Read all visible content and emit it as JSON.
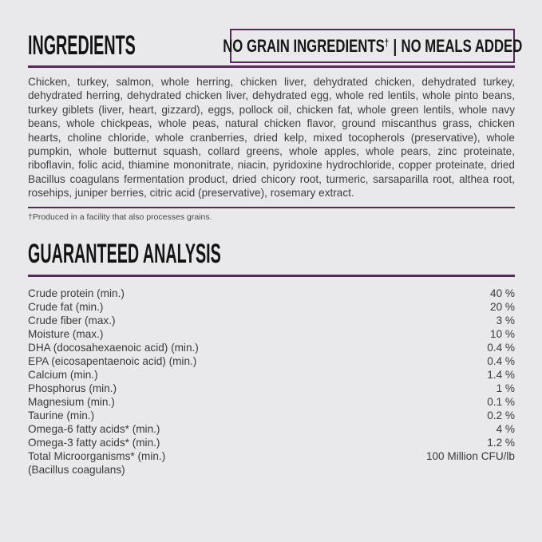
{
  "page": {
    "background_color": "#e9e9eb",
    "accent_color": "#56295b",
    "heading_color": "#141414",
    "body_text_color": "#3e3e3e"
  },
  "ingredients": {
    "title": "INGREDIENTS",
    "badge": {
      "prefix": "NO GRAIN INGREDIENTS",
      "dagger": "†",
      "separator": "|",
      "suffix": "NO MEALS ADDED"
    },
    "body": "Chicken, turkey, salmon, whole herring, chicken liver, dehydrated chicken, dehydrated turkey, dehydrated herring, dehydrated chicken liver, dehydrated egg, whole red lentils, whole pinto beans, turkey giblets (liver, heart, gizzard), eggs, pollock oil, chicken fat, whole green lentils, whole navy beans, whole chickpeas, whole peas, natural chicken flavor, ground miscanthus grass, chicken hearts, choline chloride, whole cranberries, dried kelp, mixed tocopherols (preservative), whole pumpkin, whole butternut squash, collard greens, whole apples, whole pears, zinc proteinate, riboflavin, folic acid, thiamine mononitrate, niacin, pyridoxine hydrochloride, copper proteinate, dried Bacillus coagulans fermentation product, dried chicory root, turmeric, sarsaparilla root, althea root, rosehips, juniper berries, citric acid (preservative), rosemary extract.",
    "footnote": "†Produced in a facility that also processes grains."
  },
  "guaranteed_analysis": {
    "title": "GUARANTEED ANALYSIS",
    "rows": [
      {
        "label": "Crude protein (min.)",
        "value": "40 %"
      },
      {
        "label": "Crude fat (min.)",
        "value": "20 %"
      },
      {
        "label": "Crude fiber (max.)",
        "value": "3 %"
      },
      {
        "label": "Moisture (max.)",
        "value": "10 %"
      },
      {
        "label": "DHA (docosahexaenoic acid) (min.)",
        "value": "0.4 %"
      },
      {
        "label": "EPA (eicosapentaenoic acid) (min.)",
        "value": "0.4 %"
      },
      {
        "label": "Calcium (min.)",
        "value": "1.4 %"
      },
      {
        "label": "Phosphorus (min.)",
        "value": "1 %"
      },
      {
        "label": "Magnesium (min.)",
        "value": "0.1 %"
      },
      {
        "label": "Taurine (min.)",
        "value": "0.2 %"
      },
      {
        "label": "Omega-6 fatty acids* (min.)",
        "value": "4 %"
      },
      {
        "label": "Omega-3 fatty acids* (min.)",
        "value": "1.2 %"
      },
      {
        "label": "Total Microorganisms* (min.)",
        "value": "100 Million CFU/lb"
      },
      {
        "label": "(Bacillus coagulans)",
        "value": ""
      }
    ]
  }
}
